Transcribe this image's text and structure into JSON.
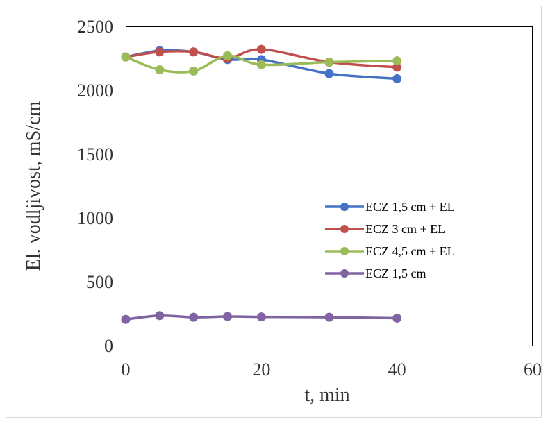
{
  "chart_data": {
    "type": "line",
    "title": "",
    "xlabel": "t, min",
    "ylabel": "El. vodljivost, mS/cm",
    "xlim": [
      0,
      60
    ],
    "ylim": [
      0,
      2500
    ],
    "x_ticks": [
      0,
      20,
      40,
      60
    ],
    "y_ticks": [
      0,
      500,
      1000,
      1500,
      2000,
      2500
    ],
    "x_tick_labels": [
      "0",
      "20",
      "40",
      "60"
    ],
    "y_tick_labels": [
      "0",
      "500",
      "1000",
      "1500",
      "2000",
      "2500"
    ],
    "grid": false,
    "legend_position": "right",
    "smooth": true,
    "x": [
      0,
      5,
      10,
      15,
      20,
      30,
      40
    ],
    "series": [
      {
        "name": "ECZ 1,5 cm + EL",
        "color": "#4472C4",
        "values": [
          2260,
          2310,
          2300,
          2240,
          2240,
          2130,
          2090
        ]
      },
      {
        "name": "ECZ 3 cm + EL",
        "color": "#C0504D",
        "values": [
          2260,
          2300,
          2300,
          2250,
          2320,
          2220,
          2180
        ]
      },
      {
        "name": "ECZ 4,5 cm + EL",
        "color": "#9BBB59",
        "values": [
          2260,
          2160,
          2150,
          2270,
          2200,
          2220,
          2230
        ]
      },
      {
        "name": "ECZ 1,5 cm",
        "color": "#8064A2",
        "values": [
          205,
          235,
          222,
          228,
          225,
          222,
          215
        ]
      }
    ]
  }
}
